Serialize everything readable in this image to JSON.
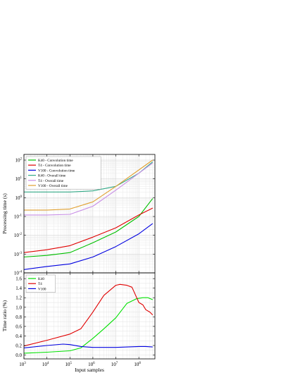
{
  "chart_data": [
    {
      "type": "line",
      "xscale": "log",
      "yscale": "log",
      "xlim": [
        1000,
        500000000
      ],
      "ylim": [
        0.0001,
        200
      ],
      "ylabel": "Processing time (s)",
      "xlabel": "",
      "grid": true,
      "legend_position": "top-left",
      "xticks": [
        {
          "value": 1000,
          "base": "10",
          "exp": "3"
        },
        {
          "value": 10000,
          "base": "10",
          "exp": "4"
        },
        {
          "value": 100000,
          "base": "10",
          "exp": "5"
        },
        {
          "value": 1000000,
          "base": "10",
          "exp": "6"
        },
        {
          "value": 10000000,
          "base": "10",
          "exp": "7"
        },
        {
          "value": 100000000,
          "base": "10",
          "exp": "8"
        }
      ],
      "yticks": [
        {
          "value": 0.0001,
          "base": "10",
          "exp": "-4"
        },
        {
          "value": 0.001,
          "base": "10",
          "exp": "-3"
        },
        {
          "value": 0.01,
          "base": "10",
          "exp": "-2"
        },
        {
          "value": 0.1,
          "base": "10",
          "exp": "-1"
        },
        {
          "value": 1,
          "base": "10",
          "exp": "0"
        },
        {
          "value": 10,
          "base": "10",
          "exp": "1"
        },
        {
          "value": 100,
          "base": "10",
          "exp": "2"
        }
      ],
      "series": [
        {
          "name": "K40 - Convolution time",
          "color": "#00c000",
          "x": [
            1000,
            10000,
            100000,
            1000000,
            10000000,
            100000000,
            400000000
          ],
          "y": [
            0.0007,
            0.00085,
            0.0012,
            0.004,
            0.015,
            0.1,
            0.9
          ]
        },
        {
          "name": "T4 - Convolution time",
          "color": "#e00000",
          "x": [
            1000,
            10000,
            100000,
            1000000,
            10000000,
            100000000,
            400000000
          ],
          "y": [
            0.0012,
            0.0017,
            0.0028,
            0.008,
            0.025,
            0.12,
            0.28
          ]
        },
        {
          "name": "V100 - Convolution time",
          "color": "#0000e0",
          "x": [
            1000,
            10000,
            100000,
            1000000,
            10000000,
            100000000,
            400000000
          ],
          "y": [
            0.00015,
            0.00022,
            0.0003,
            0.0007,
            0.0025,
            0.012,
            0.042
          ]
        },
        {
          "name": "K40 - Overall time",
          "color": "#33aa88",
          "x": [
            1000,
            10000,
            100000,
            1000000,
            10000000,
            100000000,
            400000000
          ],
          "y": [
            2.0,
            2.0,
            2.0,
            2.3,
            4.0,
            20,
            80
          ]
        },
        {
          "name": "T4 - Overall time",
          "color": "#c88ee6",
          "x": [
            1000,
            10000,
            100000,
            1000000,
            10000000,
            100000000,
            400000000
          ],
          "y": [
            0.12,
            0.12,
            0.13,
            0.35,
            2.5,
            20,
            70
          ]
        },
        {
          "name": "V100 - Overall time",
          "color": "#e0a030",
          "x": [
            1000,
            10000,
            100000,
            1000000,
            10000000,
            100000000,
            400000000
          ],
          "y": [
            0.22,
            0.22,
            0.25,
            0.6,
            4.0,
            30,
            100
          ]
        }
      ]
    },
    {
      "type": "line",
      "xscale": "log",
      "yscale": "linear",
      "xlim": [
        1000,
        500000000
      ],
      "ylim": [
        -0.08,
        1.72
      ],
      "xlabel": "Input samples",
      "ylabel": "Time ratio (%)",
      "grid": true,
      "legend_position": "top-left",
      "xticks": [
        {
          "value": 1000,
          "base": "10",
          "exp": "3"
        },
        {
          "value": 10000,
          "base": "10",
          "exp": "4"
        },
        {
          "value": 100000,
          "base": "10",
          "exp": "5"
        },
        {
          "value": 1000000,
          "base": "10",
          "exp": "6"
        },
        {
          "value": 10000000,
          "base": "10",
          "exp": "7"
        },
        {
          "value": 100000000,
          "base": "10",
          "exp": "8"
        }
      ],
      "yticks": [
        {
          "value": 0.0,
          "label": "0.0"
        },
        {
          "value": 0.2,
          "label": "0.2"
        },
        {
          "value": 0.4,
          "label": "0.4"
        },
        {
          "value": 0.6,
          "label": "0.6"
        },
        {
          "value": 0.8,
          "label": "0.8"
        },
        {
          "value": 1.0,
          "label": "1.0"
        },
        {
          "value": 1.2,
          "label": "1.2"
        },
        {
          "value": 1.4,
          "label": "1.4"
        },
        {
          "value": 1.6,
          "label": "1.6"
        }
      ],
      "series": [
        {
          "name": "K40",
          "color": "#00e000",
          "x": [
            1000,
            10000,
            100000,
            300000,
            1000000,
            3000000,
            10000000,
            30000000,
            80000000,
            150000000,
            250000000,
            400000000
          ],
          "y": [
            0.04,
            0.06,
            0.09,
            0.15,
            0.35,
            0.55,
            0.78,
            1.08,
            1.18,
            1.2,
            1.2,
            1.16
          ]
        },
        {
          "name": "T4",
          "color": "#e00000",
          "x": [
            1000,
            10000,
            100000,
            300000,
            1000000,
            3000000,
            10000000,
            15000000,
            30000000,
            50000000,
            100000000,
            150000000,
            200000000,
            300000000,
            400000000
          ],
          "y": [
            0.19,
            0.31,
            0.44,
            0.55,
            0.9,
            1.25,
            1.46,
            1.48,
            1.46,
            1.42,
            1.1,
            1.05,
            0.95,
            0.9,
            0.84
          ]
        },
        {
          "name": "V100",
          "color": "#0000e0",
          "x": [
            1000,
            10000,
            50000,
            100000,
            300000,
            1000000,
            10000000,
            100000000,
            200000000,
            400000000
          ],
          "y": [
            0.15,
            0.2,
            0.23,
            0.22,
            0.18,
            0.16,
            0.16,
            0.18,
            0.18,
            0.17
          ]
        }
      ]
    }
  ]
}
